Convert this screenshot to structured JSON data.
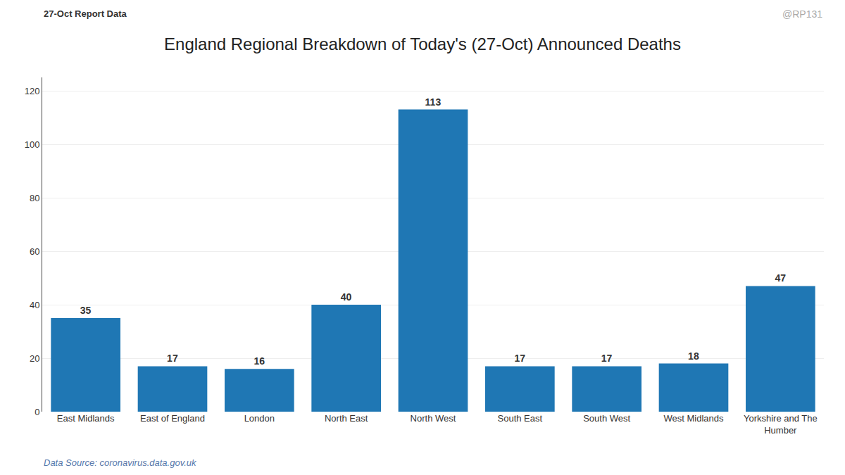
{
  "chart_data": {
    "type": "bar",
    "title": "England Regional Breakdown of Today's (27-Oct) Announced Deaths",
    "annotations": [
      "27-Oct Report Data",
      "@RP131",
      "Data Source: coronavirus.data.gov.uk"
    ],
    "categories": [
      "East Midlands",
      "East of England",
      "London",
      "North East",
      "North West",
      "South East",
      "South West",
      "West Midlands",
      "Yorkshire and The\nHumber"
    ],
    "values": [
      35,
      17,
      16,
      40,
      113,
      17,
      17,
      18,
      47
    ],
    "ylim": [
      0,
      125
    ],
    "yticks": [
      0,
      20,
      40,
      60,
      80,
      100,
      120
    ],
    "grid": true,
    "data_labels": true
  }
}
